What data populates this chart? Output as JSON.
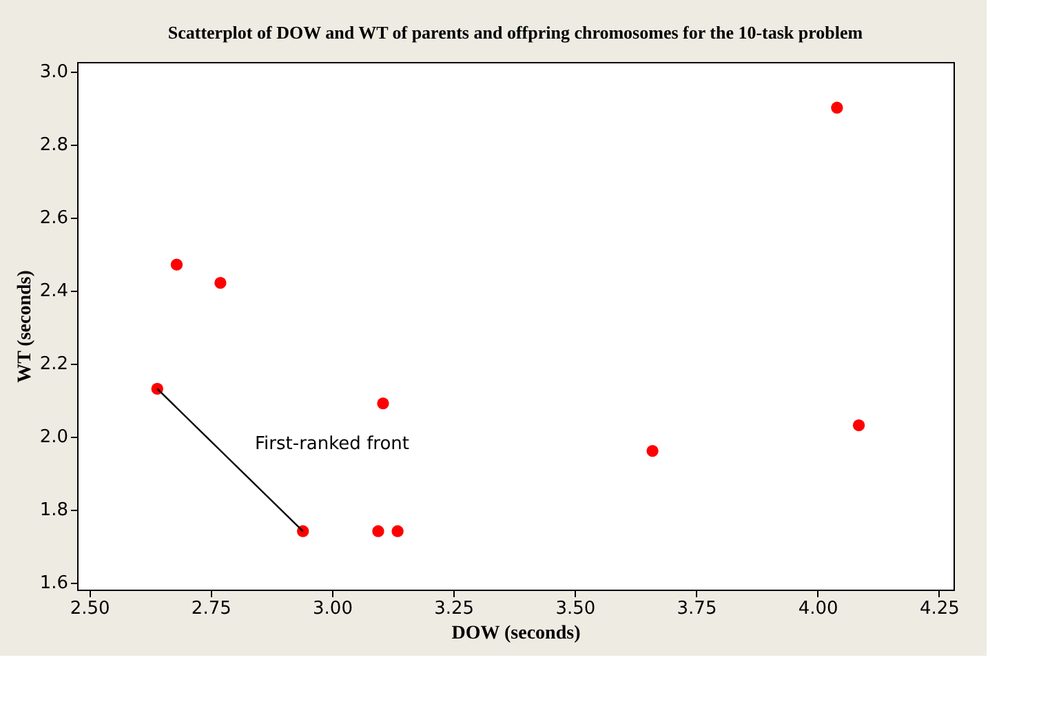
{
  "chart_data": {
    "type": "scatter",
    "title": "Scatterplot of DOW and WT of parents and offpring chromosomes for the 10-task problem",
    "xlabel": "DOW (seconds)",
    "ylabel": "WT (seconds)",
    "series": [
      {
        "color": "#ff0000",
        "marker": "circle",
        "x": [
          2.64,
          2.68,
          2.77,
          2.94,
          3.105,
          3.095,
          3.135,
          4.04,
          4.085,
          3.66
        ],
        "values": [
          2.13,
          2.47,
          2.42,
          1.74,
          2.09,
          1.74,
          1.74,
          2.9,
          2.03,
          1.96
        ]
      },
      {
        "type": "line",
        "color": "#000000",
        "x": [
          2.64,
          2.94
        ],
        "values": [
          2.13,
          1.74
        ]
      }
    ],
    "annotations": [
      "First-ranked front"
    ],
    "xlim": [
      2.475,
      4.28
    ],
    "ylim": [
      1.58,
      3.025
    ],
    "xticks": [
      {
        "value": 2.5,
        "label": "2.50"
      },
      {
        "value": 2.75,
        "label": "2.75"
      },
      {
        "value": 3.0,
        "label": "3.00"
      },
      {
        "value": 3.25,
        "label": "3.25"
      },
      {
        "value": 3.5,
        "label": "3.50"
      },
      {
        "value": 3.75,
        "label": "3.75"
      },
      {
        "value": 4.0,
        "label": "4.00"
      },
      {
        "value": 4.25,
        "label": "4.25"
      }
    ],
    "yticks": [
      {
        "value": 1.6,
        "label": "1.6"
      },
      {
        "value": 1.8,
        "label": "1.8"
      },
      {
        "value": 2.0,
        "label": "2.0"
      },
      {
        "value": 2.2,
        "label": "2.2"
      },
      {
        "value": 2.4,
        "label": "2.4"
      },
      {
        "value": 2.6,
        "label": "2.6"
      },
      {
        "value": 2.8,
        "label": "2.8"
      },
      {
        "value": 3.0,
        "label": "3.0"
      }
    ],
    "grid": false
  }
}
